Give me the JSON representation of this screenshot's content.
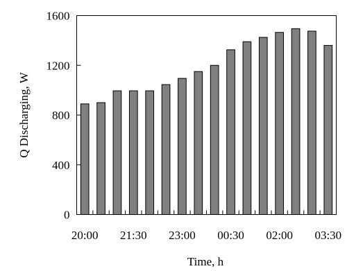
{
  "chart_data": {
    "type": "bar",
    "xlabel": "Time, h",
    "ylabel": "Q Discharging, W",
    "ylim": [
      0,
      1600
    ],
    "yticks": [
      0,
      400,
      800,
      1200,
      1600
    ],
    "grid": false,
    "x_tick_labels": [
      "20:00",
      "21:30",
      "23:00",
      "00:30",
      "02:00",
      "03:30"
    ],
    "x_tick_positions": [
      0,
      3,
      6,
      9,
      12,
      15
    ],
    "categories": [
      "20:00",
      "20:30",
      "21:00",
      "21:30",
      "22:00",
      "22:30",
      "23:00",
      "23:30",
      "00:00",
      "00:30",
      "01:00",
      "01:30",
      "02:00",
      "02:30",
      "03:00",
      "03:30"
    ],
    "values": [
      890,
      900,
      995,
      995,
      995,
      1045,
      1095,
      1150,
      1200,
      1325,
      1390,
      1425,
      1465,
      1495,
      1475,
      1360
    ],
    "colors": {
      "bar_fill": "#808080",
      "bar_stroke": "#000000",
      "axis": "#000000"
    }
  }
}
